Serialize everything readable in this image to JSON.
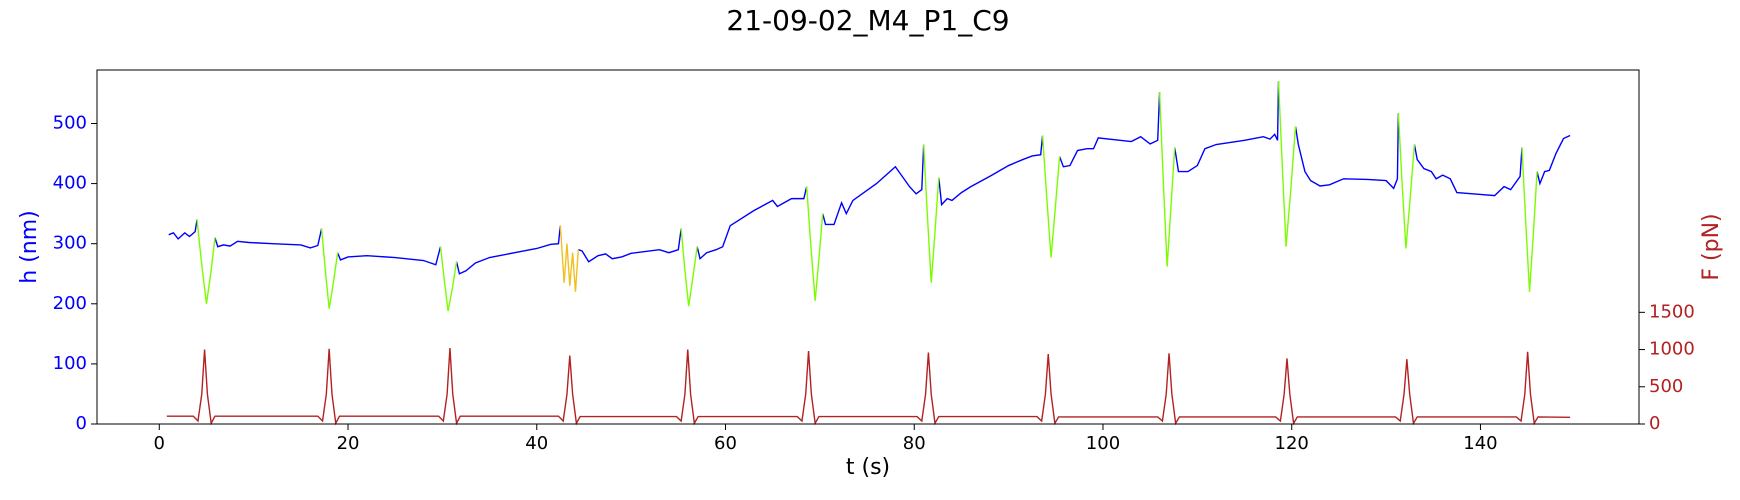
{
  "chart_data": {
    "type": "line",
    "title": "21-09-02_M4_P1_C9",
    "xlabel": "t (s)",
    "ylabel": "h (nm)",
    "y2label": "F (pN)",
    "ylabel_color": "#0000ff",
    "y2label_color": "#b22222",
    "xlim": [
      -6.6,
      156.8
    ],
    "xticks": [
      0,
      20,
      40,
      60,
      80,
      100,
      120,
      140
    ],
    "ylim": [
      0,
      589
    ],
    "yticks": [
      0,
      100,
      200,
      300,
      400,
      500
    ],
    "y2lim": [
      0,
      4755
    ],
    "y2ticks": [
      0,
      500,
      1000,
      1500
    ],
    "grid": false,
    "series": [
      {
        "color": "#0000ff",
        "x": [
          1.0,
          1.5,
          2.0,
          2.7,
          3.2,
          3.8,
          4.0,
          5.0,
          5.9,
          6.2,
          6.8,
          7.5,
          8.3,
          9.5,
          12,
          15,
          16,
          16.8,
          17.2,
          18.0,
          18.9,
          19.2,
          20,
          22,
          25,
          28,
          29.3,
          29.8,
          30.6,
          31.5,
          31.8,
          32.5,
          33.5,
          35,
          38,
          40,
          41.5,
          42.3,
          42.5,
          43.5,
          44.4,
          44.8,
          45.5,
          46.5,
          47.3,
          48,
          49,
          50,
          53,
          54,
          55,
          55.3,
          56.1,
          57.0,
          57.3,
          58,
          59,
          59.7,
          60.5,
          63,
          65,
          65.5,
          67,
          68.3,
          68.6,
          69.5,
          70.3,
          70.6,
          71.5,
          72.3,
          72.8,
          73.5,
          76,
          78,
          79.5,
          80.2,
          80.8,
          81.0,
          81.8,
          82.6,
          82.9,
          83.5,
          84,
          85,
          86,
          88,
          90,
          91.5,
          92.5,
          93.4,
          93.6,
          94.5,
          95.4,
          95.8,
          96.5,
          97.3,
          98.3,
          99,
          99.5,
          103,
          104,
          105,
          105.8,
          106.0,
          106.8,
          107.6,
          108,
          109,
          110,
          110.8,
          112,
          115,
          117,
          117.7,
          118.2,
          118.5,
          118.6,
          119.4,
          120.4,
          120.7,
          121.4,
          122,
          123,
          124,
          125.5,
          128,
          130,
          130.8,
          131.2,
          131.3,
          132.1,
          133.0,
          133.3,
          134,
          134.8,
          135.3,
          136,
          136.8,
          137.5,
          140,
          141.5,
          142.5,
          143.2,
          144.2,
          144.4,
          145.2,
          146.0,
          146.3,
          146.8,
          147.3,
          148,
          148.8,
          149.5
        ],
        "values": [
          315,
          318,
          308,
          318,
          312,
          320,
          340,
          null,
          310,
          295,
          298,
          296,
          304,
          302,
          300,
          298,
          293,
          297,
          325,
          null,
          285,
          273,
          278,
          280,
          277,
          272,
          265,
          295,
          null,
          270,
          250,
          255,
          268,
          277,
          286,
          292,
          299,
          300,
          330,
          null,
          290,
          288,
          270,
          280,
          283,
          275,
          278,
          284,
          290,
          285,
          290,
          325,
          null,
          295,
          275,
          285,
          290,
          295,
          330,
          355,
          372,
          362,
          375,
          375,
          395,
          null,
          350,
          332,
          332,
          368,
          350,
          372,
          400,
          428,
          395,
          383,
          390,
          465,
          null,
          410,
          365,
          375,
          372,
          385,
          395,
          412,
          430,
          440,
          446,
          448,
          480,
          null,
          445,
          428,
          430,
          455,
          458,
          458,
          476,
          470,
          478,
          466,
          472,
          552,
          null,
          460,
          420,
          420,
          430,
          458,
          465,
          472,
          478,
          474,
          482,
          472,
          570,
          null,
          495,
          465,
          420,
          405,
          396,
          398,
          408,
          407,
          405,
          392,
          408,
          517,
          null,
          465,
          440,
          425,
          420,
          408,
          414,
          408,
          385,
          382,
          380,
          395,
          390,
          412,
          460,
          null,
          420,
          400,
          420,
          422,
          450,
          475,
          480
        ]
      },
      {
        "color": "#7cfc00",
        "x": [
          4.0,
          4.5,
          5.0,
          5.45,
          5.9,
          12,
          17.2,
          17.6,
          18.0,
          18.45,
          18.9,
          24,
          29.8,
          30.2,
          30.6,
          31.05,
          31.5,
          50,
          55.3,
          55.7,
          56.1,
          56.55,
          57.0,
          63,
          68.6,
          69.05,
          69.5,
          69.9,
          70.3,
          76,
          81.0,
          81.4,
          81.8,
          82.2,
          82.6,
          88,
          93.6,
          94.05,
          94.5,
          94.95,
          95.4,
          100,
          106.0,
          106.4,
          106.8,
          107.2,
          107.6,
          113,
          118.6,
          119.0,
          119.4,
          119.9,
          120.4,
          126,
          131.3,
          131.7,
          132.1,
          132.55,
          133.0,
          139,
          144.4,
          144.8,
          145.2,
          145.6,
          146.0
        ],
        "values": [
          340,
          265,
          200,
          250,
          310,
          null,
          325,
          255,
          192,
          235,
          285,
          null,
          295,
          240,
          188,
          225,
          270,
          null,
          325,
          255,
          196,
          245,
          295,
          null,
          395,
          295,
          205,
          275,
          350,
          null,
          465,
          345,
          235,
          320,
          410,
          null,
          480,
          375,
          277,
          360,
          445,
          null,
          552,
          400,
          262,
          360,
          460,
          null,
          570,
          430,
          295,
          390,
          495,
          null,
          517,
          400,
          292,
          375,
          465,
          null,
          460,
          335,
          220,
          315,
          420
        ]
      },
      {
        "color": "#f0c020",
        "x": [
          42.5,
          42.9,
          43.2,
          43.5,
          43.8,
          44.1,
          44.4
        ],
        "values": [
          330,
          235,
          300,
          230,
          285,
          220,
          290
        ]
      },
      {
        "color": "#b22222",
        "axis": "y2",
        "x": [
          0.8,
          3.6,
          4.1,
          4.5,
          4.8,
          5.1,
          5.5,
          5.9,
          16.8,
          17.3,
          17.7,
          18,
          18.3,
          18.7,
          19.1,
          29.6,
          30.1,
          30.5,
          30.8,
          31.1,
          31.5,
          31.9,
          42.3,
          42.8,
          43.2,
          43.5,
          43.8,
          44.2,
          44.6,
          54.8,
          55.3,
          55.7,
          56,
          56.3,
          56.7,
          57.1,
          67.6,
          68.1,
          68.5,
          68.8,
          69.1,
          69.5,
          69.9,
          80.3,
          80.8,
          81.2,
          81.5,
          81.8,
          82.2,
          82.6,
          93.0,
          93.5,
          93.9,
          94.2,
          94.5,
          94.9,
          95.3,
          105.8,
          106.3,
          106.7,
          107,
          107.3,
          107.7,
          108.1,
          118.3,
          118.8,
          119.2,
          119.5,
          119.8,
          120.2,
          120.6,
          131.0,
          131.5,
          131.9,
          132.2,
          132.5,
          132.9,
          133.3,
          143.8,
          144.3,
          144.7,
          145,
          145.3,
          145.7,
          146.1,
          149.5
        ],
        "values": [
          105,
          105,
          40,
          400,
          1000,
          400,
          10,
          105,
          105,
          40,
          400,
          1010,
          400,
          10,
          105,
          105,
          40,
          400,
          1020,
          400,
          10,
          105,
          105,
          40,
          400,
          920,
          400,
          10,
          100,
          100,
          40,
          400,
          1000,
          400,
          10,
          100,
          100,
          40,
          400,
          980,
          400,
          10,
          100,
          100,
          40,
          400,
          960,
          400,
          10,
          100,
          100,
          40,
          400,
          940,
          400,
          10,
          95,
          95,
          40,
          400,
          950,
          400,
          10,
          95,
          95,
          40,
          400,
          880,
          400,
          10,
          95,
          95,
          40,
          400,
          870,
          400,
          10,
          95,
          95,
          40,
          400,
          970,
          400,
          10,
          95,
          90
        ]
      }
    ]
  }
}
